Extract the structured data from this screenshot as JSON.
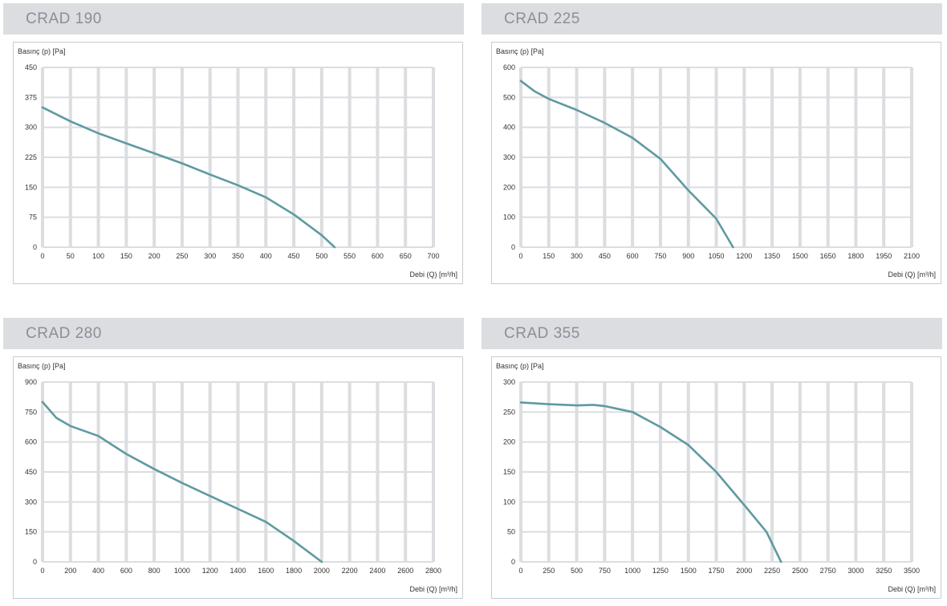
{
  "colors": {
    "header_bg": "#dcdde0",
    "header_text": "#8a8f97",
    "grid": "#dcdde0",
    "line": "#5f9aa1"
  },
  "chart_data": [
    {
      "type": "line",
      "title": "CRAD 190",
      "ylabel": "Basınç (p) [Pa]",
      "xlabel": "Debi (Q) [m³/h]",
      "xlim": [
        0,
        700
      ],
      "ylim": [
        0,
        450
      ],
      "x_ticks": [
        0,
        50,
        100,
        150,
        200,
        250,
        300,
        350,
        400,
        450,
        500,
        550,
        600,
        650,
        700
      ],
      "y_ticks": [
        0,
        75,
        150,
        225,
        300,
        375,
        450
      ],
      "series": [
        {
          "x": [
            0,
            50,
            100,
            150,
            200,
            250,
            300,
            350,
            400,
            450,
            500,
            523
          ],
          "y": [
            350,
            315,
            285,
            260,
            235,
            210,
            182,
            155,
            125,
            82,
            30,
            0
          ]
        }
      ]
    },
    {
      "type": "line",
      "title": "CRAD 225",
      "ylabel": "Basınç (p) [Pa]",
      "xlabel": "Debi (Q) [m³/h]",
      "xlim": [
        0,
        2100
      ],
      "ylim": [
        0,
        600
      ],
      "x_ticks": [
        0,
        150,
        300,
        450,
        600,
        750,
        900,
        1050,
        1200,
        1350,
        1500,
        1650,
        1800,
        1950,
        2100
      ],
      "y_ticks": [
        0,
        100,
        200,
        300,
        400,
        500,
        600
      ],
      "series": [
        {
          "x": [
            0,
            75,
            150,
            300,
            450,
            600,
            750,
            900,
            1050,
            1140
          ],
          "y": [
            555,
            520,
            495,
            458,
            415,
            365,
            295,
            190,
            95,
            0
          ]
        }
      ]
    },
    {
      "type": "line",
      "title": "CRAD 280",
      "ylabel": "Basınç (p) [Pa]",
      "xlabel": "Debi (Q) [m³/h]",
      "xlim": [
        0,
        2800
      ],
      "ylim": [
        0,
        900
      ],
      "x_ticks": [
        0,
        200,
        400,
        600,
        800,
        1000,
        1200,
        1400,
        1600,
        1800,
        2000,
        2200,
        2400,
        2600,
        2800
      ],
      "y_ticks": [
        0,
        150,
        300,
        450,
        600,
        750,
        900
      ],
      "series": [
        {
          "x": [
            0,
            100,
            200,
            400,
            600,
            800,
            1000,
            1200,
            1400,
            1600,
            1800,
            2000
          ],
          "y": [
            800,
            720,
            680,
            630,
            540,
            465,
            395,
            330,
            265,
            200,
            105,
            0
          ]
        }
      ]
    },
    {
      "type": "line",
      "title": "CRAD 355",
      "ylabel": "Basınç (p) [Pa]",
      "xlabel": "Debi (Q) [m³/h]",
      "xlim": [
        0,
        3500
      ],
      "ylim": [
        0,
        300
      ],
      "x_ticks": [
        0,
        250,
        500,
        750,
        1000,
        1250,
        1500,
        1750,
        2000,
        2250,
        2500,
        2750,
        3000,
        3250,
        3500
      ],
      "y_ticks": [
        0,
        50,
        100,
        150,
        200,
        250,
        300
      ],
      "series": [
        {
          "x": [
            0,
            250,
            500,
            650,
            750,
            1000,
            1250,
            1500,
            1750,
            2000,
            2200,
            2330
          ],
          "y": [
            266,
            263,
            261,
            262,
            260,
            250,
            225,
            195,
            150,
            95,
            50,
            0
          ]
        }
      ]
    }
  ]
}
